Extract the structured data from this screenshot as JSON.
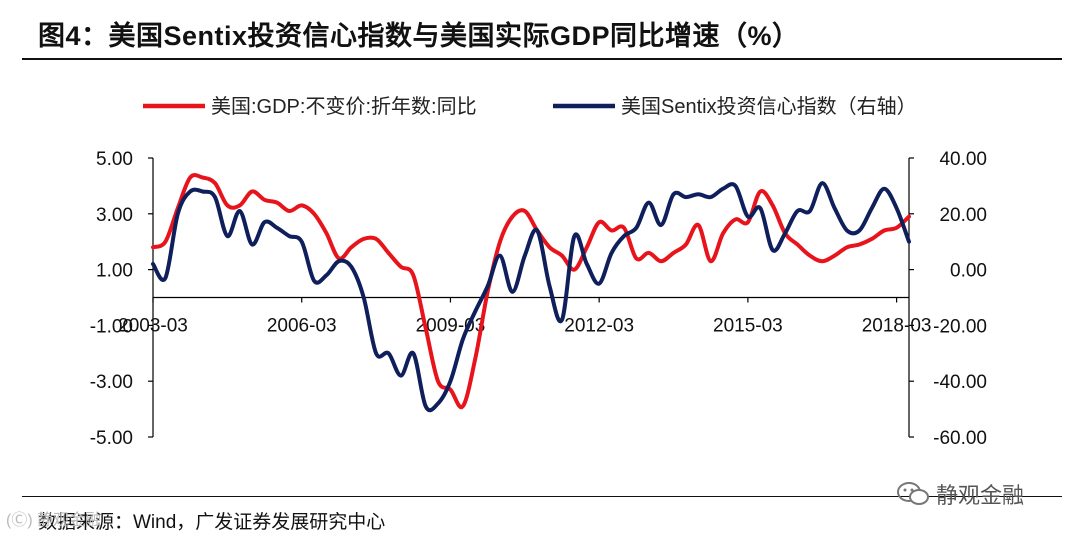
{
  "title": "图4：美国Sentix投资信心指数与美国实际GDP同比增速（%）",
  "source": "数据来源：Wind，广发证券发展研究中心",
  "brand": "静观金融",
  "left_mark": "(Ⓒ) 静观金融",
  "colors": {
    "gdp": "#e8141c",
    "sentix": "#0f1f5c",
    "axis": "#000000"
  },
  "chart_data": {
    "type": "line",
    "title": "",
    "legend": "top",
    "x_tick_labels": [
      "2003-03",
      "2006-03",
      "2009-03",
      "2012-03",
      "2015-03",
      "2018-03"
    ],
    "x_ticks_quarter_index": [
      0,
      12,
      24,
      36,
      48,
      60
    ],
    "x_range": [
      0,
      61
    ],
    "y_left": {
      "min": -5,
      "max": 5,
      "ticks": [
        "5.00",
        "3.00",
        "1.00",
        "-1.00",
        "-3.00",
        "-5.00"
      ],
      "values": [
        5,
        3,
        1,
        -1,
        -3,
        -5
      ]
    },
    "y_right": {
      "min": -60,
      "max": 40,
      "ticks": [
        "40.00",
        "20.00",
        "0.00",
        "-20.00",
        "-40.00",
        "-60.00"
      ],
      "values": [
        40,
        20,
        0,
        -20,
        -40,
        -60
      ]
    },
    "series": [
      {
        "name": "美国:GDP:不变价:折年数:同比",
        "axis": "left",
        "x": [
          0,
          1,
          2,
          3,
          4,
          5,
          6,
          7,
          8,
          9,
          10,
          11,
          12,
          13,
          14,
          15,
          16,
          17,
          18,
          19,
          20,
          21,
          22,
          23,
          24,
          25,
          26,
          27,
          28,
          29,
          30,
          31,
          32,
          33,
          34,
          35,
          36,
          37,
          38,
          39,
          40,
          41,
          42,
          43,
          44,
          45,
          46,
          47,
          48,
          49,
          50,
          51,
          52,
          53,
          54,
          55,
          56,
          57,
          58,
          59,
          60,
          61
        ],
        "values": [
          1.8,
          2.0,
          3.2,
          4.3,
          4.3,
          4.1,
          3.3,
          3.3,
          3.8,
          3.5,
          3.4,
          3.1,
          3.3,
          3.0,
          2.3,
          1.4,
          1.8,
          2.1,
          2.1,
          1.6,
          1.1,
          0.8,
          -1.1,
          -3.0,
          -3.3,
          -3.9,
          -2.2,
          0.2,
          2.0,
          2.9,
          3.1,
          2.4,
          1.8,
          1.5,
          1.0,
          1.8,
          2.7,
          2.4,
          2.5,
          1.4,
          1.6,
          1.3,
          1.6,
          1.9,
          2.6,
          1.3,
          2.3,
          2.8,
          2.7,
          3.8,
          3.3,
          2.3,
          1.9,
          1.5,
          1.3,
          1.5,
          1.8,
          1.9,
          2.1,
          2.4,
          2.5,
          2.9
        ]
      },
      {
        "name": "美国Sentix投资信心指数（右轴）",
        "axis": "right",
        "x": [
          0,
          1,
          2,
          3,
          4,
          5,
          6,
          7,
          8,
          9,
          10,
          11,
          12,
          13,
          14,
          15,
          16,
          17,
          18,
          19,
          20,
          21,
          22,
          23,
          24,
          25,
          26,
          27,
          28,
          29,
          30,
          31,
          32,
          33,
          34,
          35,
          36,
          37,
          38,
          39,
          40,
          41,
          42,
          43,
          44,
          45,
          46,
          47,
          48,
          49,
          50,
          51,
          52,
          53,
          54,
          55,
          56,
          57,
          58,
          59,
          60,
          61
        ],
        "values": [
          2,
          -3,
          20,
          28,
          28,
          26,
          12,
          21,
          9,
          17,
          15,
          12,
          10,
          -4,
          -2,
          3,
          1,
          -10,
          -30,
          -30,
          -38,
          -30,
          -49,
          -48,
          -40,
          -25,
          -15,
          -6,
          5,
          -8,
          5,
          14,
          -6,
          -18,
          12,
          2,
          -5,
          6,
          12,
          15,
          24,
          16,
          27,
          26,
          27,
          26,
          29,
          30,
          19,
          22,
          7,
          13,
          21,
          21,
          31,
          22,
          14,
          14,
          22,
          29,
          22,
          10
        ]
      }
    ]
  }
}
